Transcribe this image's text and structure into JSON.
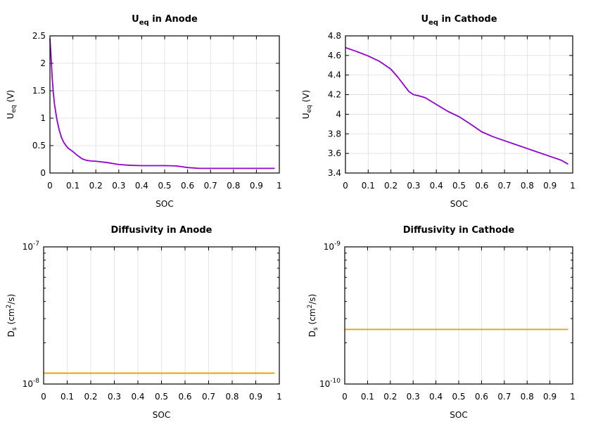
{
  "chart_data": [
    {
      "type": "line",
      "title": "U",
      "title_sub": "eq",
      "title_rest": " in Anode",
      "xlabel": "SOC",
      "ylabel": "U",
      "ylabel_sub": "eq",
      "ylabel_rest": " (V)",
      "xlim": [
        0,
        1
      ],
      "ylim": [
        0,
        2.5
      ],
      "yscale": "linear",
      "grid": true,
      "xticks": [
        "0",
        "0.1",
        "0.2",
        "0.3",
        "0.4",
        "0.5",
        "0.6",
        "0.7",
        "0.8",
        "0.9",
        "1"
      ],
      "yticks": [
        {
          "value": 0,
          "label": "0"
        },
        {
          "value": 0.5,
          "label": "0.5"
        },
        {
          "value": 1,
          "label": "1"
        },
        {
          "value": 1.5,
          "label": "1.5"
        },
        {
          "value": 2,
          "label": "2"
        },
        {
          "value": 2.5,
          "label": "2.5"
        }
      ],
      "series": [
        {
          "color": "#9400d3",
          "x": [
            0.0,
            0.005,
            0.01,
            0.015,
            0.02,
            0.03,
            0.04,
            0.05,
            0.06,
            0.07,
            0.08,
            0.1,
            0.12,
            0.14,
            0.16,
            0.18,
            0.2,
            0.25,
            0.3,
            0.35,
            0.4,
            0.45,
            0.5,
            0.55,
            0.6,
            0.65,
            0.7,
            0.75,
            0.8,
            0.85,
            0.9,
            0.95,
            0.98
          ],
          "y": [
            2.45,
            2.1,
            1.72,
            1.45,
            1.25,
            0.98,
            0.79,
            0.65,
            0.56,
            0.5,
            0.45,
            0.39,
            0.32,
            0.26,
            0.23,
            0.22,
            0.215,
            0.19,
            0.155,
            0.14,
            0.135,
            0.135,
            0.135,
            0.13,
            0.1,
            0.085,
            0.085,
            0.085,
            0.085,
            0.085,
            0.085,
            0.085,
            0.085
          ]
        }
      ]
    },
    {
      "type": "line",
      "title": "U",
      "title_sub": "eq",
      "title_rest": " in Cathode",
      "xlabel": "SOC",
      "ylabel": "U",
      "ylabel_sub": "eq",
      "ylabel_rest": " (V)",
      "xlim": [
        0,
        1
      ],
      "ylim": [
        3.4,
        4.8
      ],
      "yscale": "linear",
      "grid": true,
      "xticks": [
        "0",
        "0.1",
        "0.2",
        "0.3",
        "0.4",
        "0.5",
        "0.6",
        "0.7",
        "0.8",
        "0.9",
        "1"
      ],
      "yticks": [
        {
          "value": 3.4,
          "label": "3.4"
        },
        {
          "value": 3.6,
          "label": "3.6"
        },
        {
          "value": 3.8,
          "label": "3.8"
        },
        {
          "value": 4.0,
          "label": "4"
        },
        {
          "value": 4.2,
          "label": "4.2"
        },
        {
          "value": 4.4,
          "label": "4.4"
        },
        {
          "value": 4.6,
          "label": "4.6"
        },
        {
          "value": 4.8,
          "label": "4.8"
        }
      ],
      "series": [
        {
          "color": "#9400d3",
          "x": [
            0.0,
            0.05,
            0.1,
            0.15,
            0.2,
            0.23,
            0.26,
            0.28,
            0.3,
            0.32,
            0.35,
            0.4,
            0.45,
            0.5,
            0.55,
            0.6,
            0.65,
            0.7,
            0.75,
            0.8,
            0.85,
            0.9,
            0.95,
            0.98
          ],
          "y": [
            4.68,
            4.64,
            4.595,
            4.54,
            4.46,
            4.38,
            4.29,
            4.23,
            4.2,
            4.19,
            4.17,
            4.1,
            4.03,
            3.975,
            3.9,
            3.82,
            3.77,
            3.73,
            3.69,
            3.65,
            3.61,
            3.57,
            3.53,
            3.49
          ]
        }
      ]
    },
    {
      "type": "line",
      "title": "Diffusivity in Anode",
      "xlabel": "SOC",
      "ylabel": "D",
      "ylabel_sub": "s",
      "ylabel_mid": " (cm",
      "ylabel_sup": "2",
      "ylabel_rest": "/s)",
      "xlim": [
        0,
        1
      ],
      "ylim": [
        1e-08,
        1e-07
      ],
      "yscale": "log",
      "grid": true,
      "xticks": [
        "0",
        "0.1",
        "0.2",
        "0.3",
        "0.4",
        "0.5",
        "0.6",
        "0.7",
        "0.8",
        "0.9",
        "1"
      ],
      "yticks": [
        {
          "value": 1e-08,
          "base": "10",
          "exp": "-8"
        },
        {
          "value": 1e-07,
          "base": "10",
          "exp": "-7"
        }
      ],
      "series": [
        {
          "color": "#e69f00",
          "x": [
            0.0,
            0.98
          ],
          "y": [
            1.2e-08,
            1.2e-08
          ]
        }
      ]
    },
    {
      "type": "line",
      "title": "Diffusivity in Cathode",
      "xlabel": "SOC",
      "ylabel": "D",
      "ylabel_sub": "s",
      "ylabel_mid": " (cm",
      "ylabel_sup": "2",
      "ylabel_rest": "/s)",
      "xlim": [
        0,
        1
      ],
      "ylim": [
        1e-10,
        1e-09
      ],
      "yscale": "log",
      "grid": true,
      "xticks": [
        "0",
        "0.1",
        "0.2",
        "0.3",
        "0.4",
        "0.5",
        "0.6",
        "0.7",
        "0.8",
        "0.9",
        "1"
      ],
      "yticks": [
        {
          "value": 1e-10,
          "base": "10",
          "exp": "-10"
        },
        {
          "value": 1e-09,
          "base": "10",
          "exp": "-9"
        }
      ],
      "series": [
        {
          "color": "#e69f00",
          "x": [
            0.0,
            0.98
          ],
          "y": [
            2.5e-10,
            2.5e-10
          ]
        }
      ]
    }
  ]
}
